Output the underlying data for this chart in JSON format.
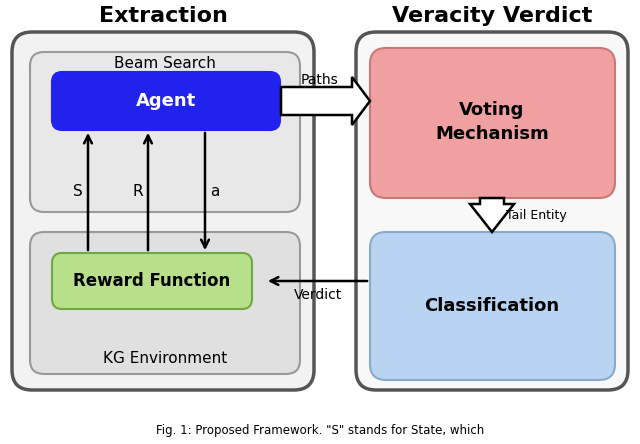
{
  "title_extraction": "Extraction",
  "title_veracity": "Veracity Verdict",
  "caption": "Fig. 1: Proposed Framework. \"S\" stands for State, which",
  "bg_color": "#ffffff",
  "outer_left_face": "#f2f2f2",
  "outer_left_edge": "#555555",
  "outer_right_face": "#f8f8f8",
  "outer_right_edge": "#555555",
  "beam_face": "#e8e8e8",
  "beam_edge": "#999999",
  "kg_face": "#e0e0e0",
  "kg_edge": "#999999",
  "agent_face": "#2222ee",
  "agent_edge": "#2222ee",
  "reward_face": "#b8e08a",
  "reward_edge": "#6aaa40",
  "voting_face": "#f0a0a0",
  "voting_edge": "#cc7777",
  "class_face": "#b8d4f0",
  "class_edge": "#88aacc",
  "agent_text": "#ffffff",
  "label_beam": "Beam Search",
  "label_agent": "Agent",
  "label_reward": "Reward Function",
  "label_kg": "KG Environment",
  "label_voting": "Voting\nMechanism",
  "label_classification": "Classification",
  "label_s": "S",
  "label_r": "R",
  "label_a": "a",
  "label_paths": "Paths",
  "label_verdict": "Verdict",
  "label_tail": "Tail Entity"
}
